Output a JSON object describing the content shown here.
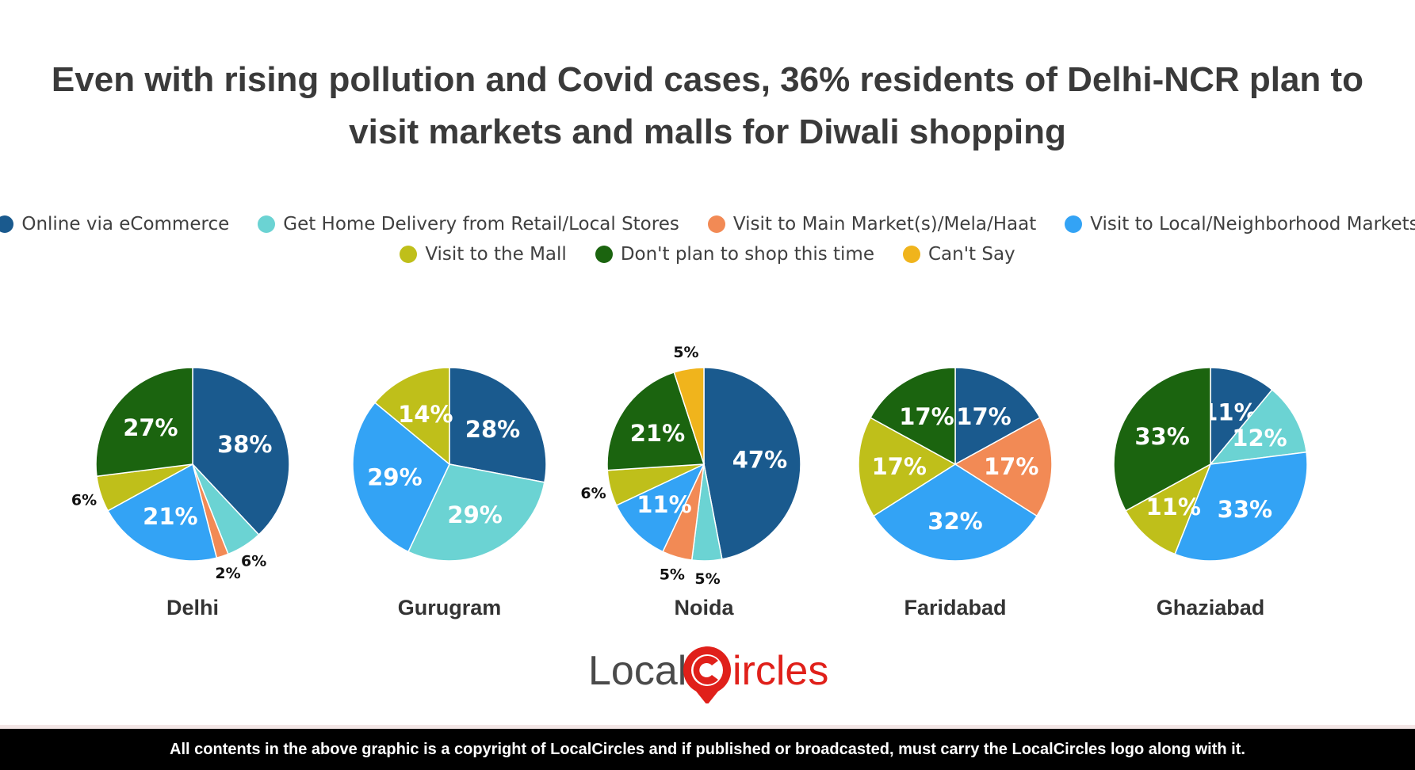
{
  "title": "Even with rising pollution and Covid cases, 36% residents of Delhi-NCR plan to visit markets and malls for Diwali shopping",
  "legend": {
    "row1": [
      {
        "label": "Online via eCommerce",
        "color": "#1a5a8e"
      },
      {
        "label": "Get Home Delivery from Retail/Local Stores",
        "color": "#6bd3d3"
      },
      {
        "label": "Visit to Main Market(s)/Mela/Haat",
        "color": "#f28a55"
      },
      {
        "label": "Visit to Local/Neighborhood Markets",
        "color": "#33a3f5"
      }
    ],
    "row2": [
      {
        "label": "Visit to the Mall",
        "color": "#bfbf1a"
      },
      {
        "label": "Don't plan to shop this time",
        "color": "#1b640f"
      },
      {
        "label": "Can't Say",
        "color": "#f0b41c"
      }
    ]
  },
  "chart_data": [
    {
      "type": "pie",
      "title": "Delhi",
      "categories": [
        "Online via eCommerce",
        "Get Home Delivery from Retail/Local Stores",
        "Visit to Main Market(s)/Mela/Haat",
        "Visit to Local/Neighborhood Markets",
        "Visit to the Mall",
        "Don't plan to shop this time"
      ],
      "values": [
        38,
        6,
        2,
        21,
        6,
        27
      ],
      "labels": [
        "38%",
        "6%",
        "2%",
        "21%",
        "6%",
        "27%"
      ]
    },
    {
      "type": "pie",
      "title": "Gurugram",
      "categories": [
        "Online via eCommerce",
        "Get Home Delivery from Retail/Local Stores",
        "Visit to Local/Neighborhood Markets",
        "Visit to the Mall"
      ],
      "values": [
        28,
        29,
        29,
        14
      ],
      "labels": [
        "28%",
        "29%",
        "29%",
        "14%"
      ]
    },
    {
      "type": "pie",
      "title": "Noida",
      "categories": [
        "Online via eCommerce",
        "Get Home Delivery from Retail/Local Stores",
        "Visit to Main Market(s)/Mela/Haat",
        "Visit to Local/Neighborhood Markets",
        "Visit to the Mall",
        "Don't plan to shop this time",
        "Can't Say"
      ],
      "values": [
        47,
        5,
        5,
        11,
        6,
        21,
        5
      ],
      "labels": [
        "47%",
        "5%",
        "5%",
        "11%",
        "6%",
        "21%",
        "5%"
      ]
    },
    {
      "type": "pie",
      "title": "Faridabad",
      "categories": [
        "Online via eCommerce",
        "Visit to Main Market(s)/Mela/Haat",
        "Visit to Local/Neighborhood Markets",
        "Visit to the Mall",
        "Don't plan to shop this time"
      ],
      "values": [
        17,
        17,
        32,
        17,
        17
      ],
      "labels": [
        "17%",
        "17%",
        "32%",
        "17%",
        "17%"
      ]
    },
    {
      "type": "pie",
      "title": "Ghaziabad",
      "categories": [
        "Online via eCommerce",
        "Get Home Delivery from Retail/Local Stores",
        "Visit to Local/Neighborhood Markets",
        "Visit to the Mall",
        "Don't plan to shop this time"
      ],
      "values": [
        11,
        12,
        33,
        11,
        33
      ],
      "labels": [
        "11%",
        "12%",
        "33%",
        "11%",
        "33%"
      ]
    }
  ],
  "logo": {
    "part1": "Local",
    "part2": "ircles"
  },
  "footer": "All contents in the above graphic is a copyright of LocalCircles and if published or broadcasted, must carry the LocalCircles logo along with it."
}
